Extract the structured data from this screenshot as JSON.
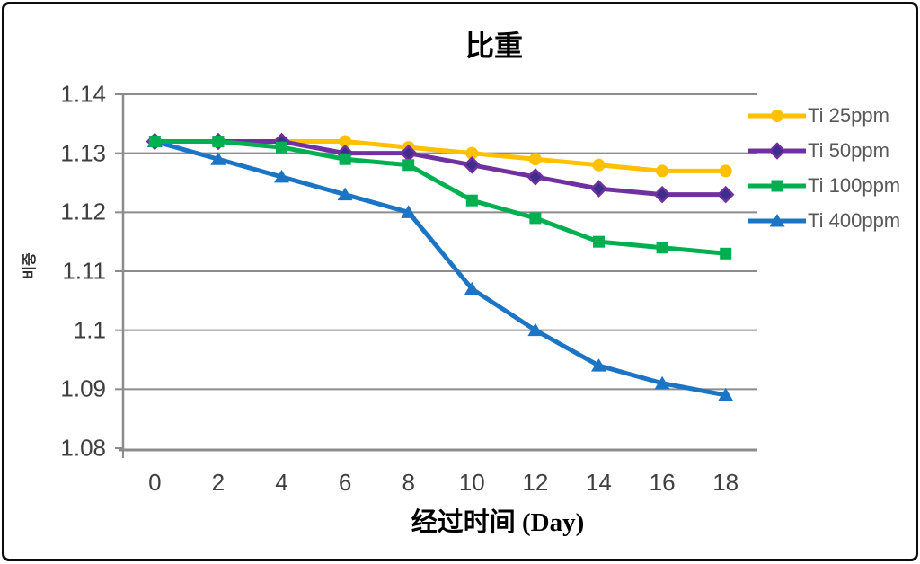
{
  "frame": {
    "background": "#FFFFFF",
    "border_color": "#0C0C0C"
  },
  "chart_data": {
    "type": "line",
    "title": "比重",
    "ylabel": "비중",
    "xlabel_main": "经过时间",
    "xlabel_unit": "(Day)",
    "x_categories": [
      "0",
      "2",
      "4",
      "6",
      "8",
      "10",
      "12",
      "14",
      "16",
      "18"
    ],
    "y_ticks": [
      "1.14",
      "1.13",
      "1.12",
      "1.11",
      "1.1",
      "1.09",
      "1.08"
    ],
    "y_tick_values": [
      1.14,
      1.13,
      1.12,
      1.11,
      1.1,
      1.09,
      1.08
    ],
    "ylim": [
      1.08,
      1.14
    ],
    "grid": "horizontal",
    "legend_position": "right",
    "axis_color": "#8C8C8C",
    "tick_label_color": "#3F3F3F",
    "legend_text_color": "#595959",
    "series": [
      {
        "name": "Ti 25ppm",
        "marker": "circle",
        "color": "#FFC000",
        "marker_fill": "#FFC000",
        "values": [
          1.132,
          1.132,
          1.132,
          1.132,
          1.131,
          1.13,
          1.129,
          1.128,
          1.127,
          1.127
        ]
      },
      {
        "name": "Ti 50ppm",
        "marker": "diamond",
        "color": "#7030A0",
        "marker_fill": "#3E2E8C",
        "values": [
          1.132,
          1.132,
          1.132,
          1.13,
          1.13,
          1.128,
          1.126,
          1.124,
          1.123,
          1.123
        ]
      },
      {
        "name": "Ti 100ppm",
        "marker": "square",
        "color": "#00B050",
        "marker_fill": "#00B050",
        "values": [
          1.132,
          1.132,
          1.131,
          1.129,
          1.128,
          1.122,
          1.119,
          1.115,
          1.114,
          1.113
        ]
      },
      {
        "name": "Ti 400ppm",
        "marker": "triangle",
        "color": "#1B74C4",
        "marker_fill": "#1B74C4",
        "values": [
          1.132,
          1.129,
          1.126,
          1.123,
          1.12,
          1.107,
          1.1,
          1.094,
          1.091,
          1.089
        ]
      }
    ],
    "draw_order": [
      "Ti 400ppm",
      "Ti 25ppm",
      "Ti 50ppm",
      "Ti 100ppm"
    ]
  }
}
